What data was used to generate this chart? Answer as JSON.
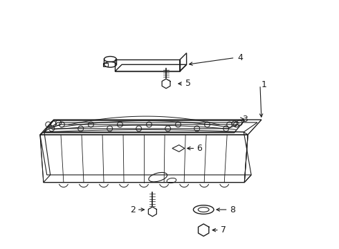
{
  "bg_color": "#ffffff",
  "line_color": "#1a1a1a",
  "figsize": [
    4.9,
    3.6
  ],
  "dpi": 100,
  "label_fontsize": 9,
  "lw": 1.0
}
